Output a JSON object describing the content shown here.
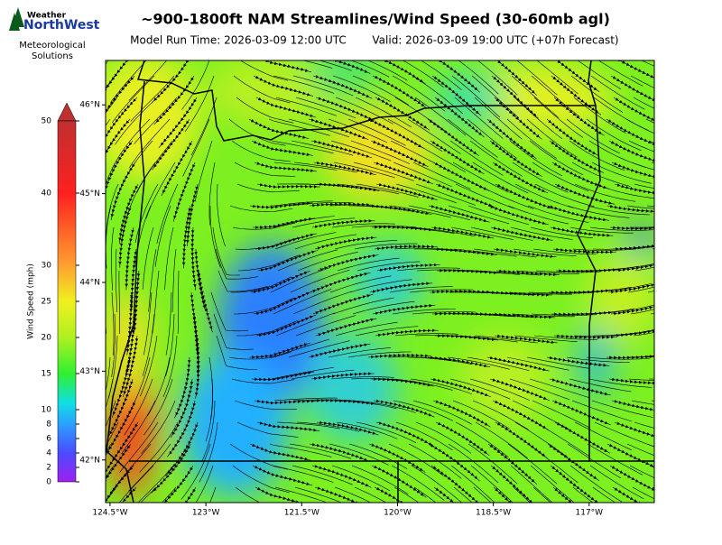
{
  "logo": {
    "top": "Weather",
    "main": "NorthWest",
    "line1": "Meteorological",
    "line2": "Solutions"
  },
  "header": {
    "title": "~900-1800ft NAM Streamlines/Wind Speed (30-60mb agl)",
    "model_run": "Model Run Time: 2026-03-09 12:00 UTC",
    "valid": "Valid: 2026-03-09 19:00 UTC  (+07h Forecast)"
  },
  "colorbar": {
    "label": "Wind Speed (mph)",
    "lim": [
      0,
      50
    ],
    "ticks": [
      0,
      2,
      4,
      6,
      8,
      10,
      15,
      20,
      25,
      30,
      40,
      50
    ]
  },
  "map": {
    "xlim": [
      -124.57,
      -115.98
    ],
    "ylim": [
      41.52,
      46.5
    ],
    "xticks": [
      {
        "value": -124.5,
        "label": "124.5°W"
      },
      {
        "value": -123,
        "label": "123°W"
      },
      {
        "value": -121.5,
        "label": "121.5°W"
      },
      {
        "value": -120,
        "label": "120°W"
      },
      {
        "value": -118.5,
        "label": "118.5°W"
      },
      {
        "value": -117,
        "label": "117°W"
      }
    ],
    "yticks": [
      {
        "value": 46,
        "label": "46°N"
      },
      {
        "value": 45,
        "label": "45°N"
      },
      {
        "value": 44,
        "label": "44°N"
      },
      {
        "value": 43,
        "label": "43°N"
      },
      {
        "value": 42,
        "label": "42°N"
      }
    ]
  }
}
